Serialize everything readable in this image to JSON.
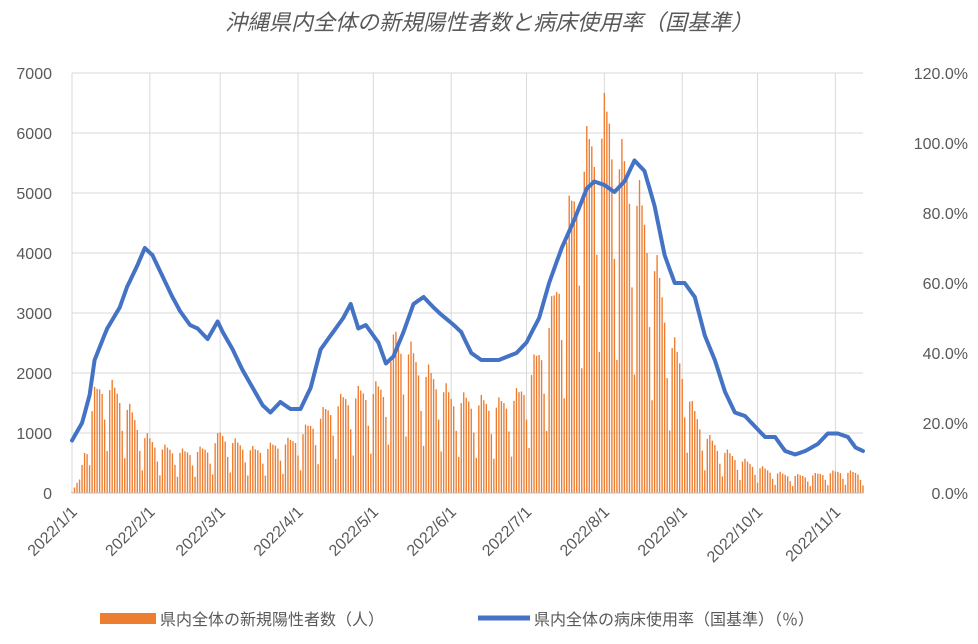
{
  "chart_data": {
    "type": "bar+line",
    "title": "沖縄県内全体の新規陽性者数と病床使用率（国基準）",
    "x_start": "2022/1/1",
    "x_end": "2022/11/12",
    "x_ticks": [
      "2022/1/1",
      "2022/2/1",
      "2022/3/1",
      "2022/4/1",
      "2022/5/1",
      "2022/6/1",
      "2022/7/1",
      "2022/8/1",
      "2022/9/1",
      "2022/10/1",
      "2022/11/1"
    ],
    "y_left": {
      "min": 0,
      "max": 7000,
      "step": 1000,
      "ticks": [
        "0",
        "1000",
        "2000",
        "3000",
        "4000",
        "5000",
        "6000",
        "7000"
      ]
    },
    "y_right": {
      "min": 0,
      "max": 120,
      "step": 20,
      "ticks": [
        "0.0%",
        "20.0%",
        "40.0%",
        "60.0%",
        "80.0%",
        "100.0%",
        "120.0%"
      ]
    },
    "grid": true,
    "legend_position": "bottom",
    "colors": {
      "bars": "#ED7D31",
      "line": "#4472C4",
      "grid": "#D9D9D9",
      "text": "#595959"
    },
    "series": [
      {
        "name": "県内全体の新規陽性者数（人）",
        "type": "bar",
        "axis": "left",
        "anchors": [
          [
            "2022/1/1",
            30
          ],
          [
            "2022/1/4",
            200
          ],
          [
            "2022/1/7",
            900
          ],
          [
            "2022/1/10",
            1500
          ],
          [
            "2022/1/14",
            1700
          ],
          [
            "2022/1/20",
            1500
          ],
          [
            "2022/1/25",
            1200
          ],
          [
            "2022/1/29",
            900
          ],
          [
            "2022/2/5",
            700
          ],
          [
            "2022/2/15",
            620
          ],
          [
            "2022/2/25",
            680
          ],
          [
            "2022/3/1",
            900
          ],
          [
            "2022/3/8",
            750
          ],
          [
            "2022/3/15",
            650
          ],
          [
            "2022/3/22",
            720
          ],
          [
            "2022/3/30",
            800
          ],
          [
            "2022/4/5",
            1000
          ],
          [
            "2022/4/12",
            1250
          ],
          [
            "2022/4/20",
            1450
          ],
          [
            "2022/4/28",
            1550
          ],
          [
            "2022/5/5",
            1600
          ],
          [
            "2022/5/10",
            2400
          ],
          [
            "2022/5/15",
            2200
          ],
          [
            "2022/5/20",
            1900
          ],
          [
            "2022/5/27",
            1700
          ],
          [
            "2022/6/1",
            1450
          ],
          [
            "2022/6/10",
            1400
          ],
          [
            "2022/6/20",
            1350
          ],
          [
            "2022/6/28",
            1500
          ],
          [
            "2022/7/1",
            1700
          ],
          [
            "2022/7/8",
            2300
          ],
          [
            "2022/7/13",
            3100
          ],
          [
            "2022/7/18",
            4200
          ],
          [
            "2022/7/24",
            5100
          ],
          [
            "2022/7/30",
            5600
          ],
          [
            "2022/8/3",
            5700
          ],
          [
            "2022/8/8",
            5000
          ],
          [
            "2022/8/13",
            4700
          ],
          [
            "2022/8/18",
            4000
          ],
          [
            "2022/8/23",
            3200
          ],
          [
            "2022/8/28",
            2300
          ],
          [
            "2022/9/1",
            1900
          ],
          [
            "2022/9/5",
            1300
          ],
          [
            "2022/9/10",
            900
          ],
          [
            "2022/9/15",
            700
          ],
          [
            "2022/9/22",
            550
          ],
          [
            "2022/9/28",
            450
          ],
          [
            "2022/10/5",
            350
          ],
          [
            "2022/10/12",
            280
          ],
          [
            "2022/10/20",
            260
          ],
          [
            "2022/10/27",
            300
          ],
          [
            "2022/11/3",
            330
          ],
          [
            "2022/11/12",
            300
          ]
        ]
      },
      {
        "name": "県内全体の病床使用率（国基準）（％）",
        "type": "line",
        "axis": "right",
        "anchors": [
          [
            "2022/1/1",
            15
          ],
          [
            "2022/1/5",
            20
          ],
          [
            "2022/1/8",
            28
          ],
          [
            "2022/1/10",
            38
          ],
          [
            "2022/1/15",
            47
          ],
          [
            "2022/1/20",
            53
          ],
          [
            "2022/1/23",
            59
          ],
          [
            "2022/1/27",
            65
          ],
          [
            "2022/1/30",
            70
          ],
          [
            "2022/2/2",
            68
          ],
          [
            "2022/2/6",
            62
          ],
          [
            "2022/2/10",
            56
          ],
          [
            "2022/2/13",
            52
          ],
          [
            "2022/2/17",
            48
          ],
          [
            "2022/2/20",
            47
          ],
          [
            "2022/2/24",
            44
          ],
          [
            "2022/2/28",
            49
          ],
          [
            "2022/3/2",
            46
          ],
          [
            "2022/3/6",
            41
          ],
          [
            "2022/3/10",
            35
          ],
          [
            "2022/3/14",
            30
          ],
          [
            "2022/3/18",
            25
          ],
          [
            "2022/3/21",
            23
          ],
          [
            "2022/3/25",
            26
          ],
          [
            "2022/3/29",
            24
          ],
          [
            "2022/4/2",
            24
          ],
          [
            "2022/4/6",
            30
          ],
          [
            "2022/4/10",
            41
          ],
          [
            "2022/4/15",
            46
          ],
          [
            "2022/4/19",
            50
          ],
          [
            "2022/4/22",
            54
          ],
          [
            "2022/4/25",
            47
          ],
          [
            "2022/4/28",
            48
          ],
          [
            "2022/5/3",
            43
          ],
          [
            "2022/5/6",
            37
          ],
          [
            "2022/5/9",
            39
          ],
          [
            "2022/5/13",
            46
          ],
          [
            "2022/5/17",
            54
          ],
          [
            "2022/5/21",
            56
          ],
          [
            "2022/5/25",
            53
          ],
          [
            "2022/5/28",
            51
          ],
          [
            "2022/6/2",
            48
          ],
          [
            "2022/6/5",
            46
          ],
          [
            "2022/6/9",
            40
          ],
          [
            "2022/6/13",
            38
          ],
          [
            "2022/6/20",
            38
          ],
          [
            "2022/6/27",
            40
          ],
          [
            "2022/7/1",
            43
          ],
          [
            "2022/7/6",
            50
          ],
          [
            "2022/7/10",
            60
          ],
          [
            "2022/7/15",
            70
          ],
          [
            "2022/7/20",
            78
          ],
          [
            "2022/7/25",
            87
          ],
          [
            "2022/7/28",
            89
          ],
          [
            "2022/8/1",
            88
          ],
          [
            "2022/8/5",
            86
          ],
          [
            "2022/8/9",
            89
          ],
          [
            "2022/8/13",
            95
          ],
          [
            "2022/8/17",
            92
          ],
          [
            "2022/8/21",
            82
          ],
          [
            "2022/8/25",
            68
          ],
          [
            "2022/8/29",
            60
          ],
          [
            "2022/9/2",
            60
          ],
          [
            "2022/9/6",
            56
          ],
          [
            "2022/9/10",
            45
          ],
          [
            "2022/9/14",
            38
          ],
          [
            "2022/9/18",
            29
          ],
          [
            "2022/9/22",
            23
          ],
          [
            "2022/9/26",
            22
          ],
          [
            "2022/9/30",
            19
          ],
          [
            "2022/10/4",
            16
          ],
          [
            "2022/10/8",
            16
          ],
          [
            "2022/10/12",
            12
          ],
          [
            "2022/10/16",
            11
          ],
          [
            "2022/10/20",
            12
          ],
          [
            "2022/10/25",
            14
          ],
          [
            "2022/10/29",
            17
          ],
          [
            "2022/11/2",
            17
          ],
          [
            "2022/11/6",
            16
          ],
          [
            "2022/11/9",
            13
          ],
          [
            "2022/11/12",
            12
          ]
        ]
      }
    ]
  }
}
